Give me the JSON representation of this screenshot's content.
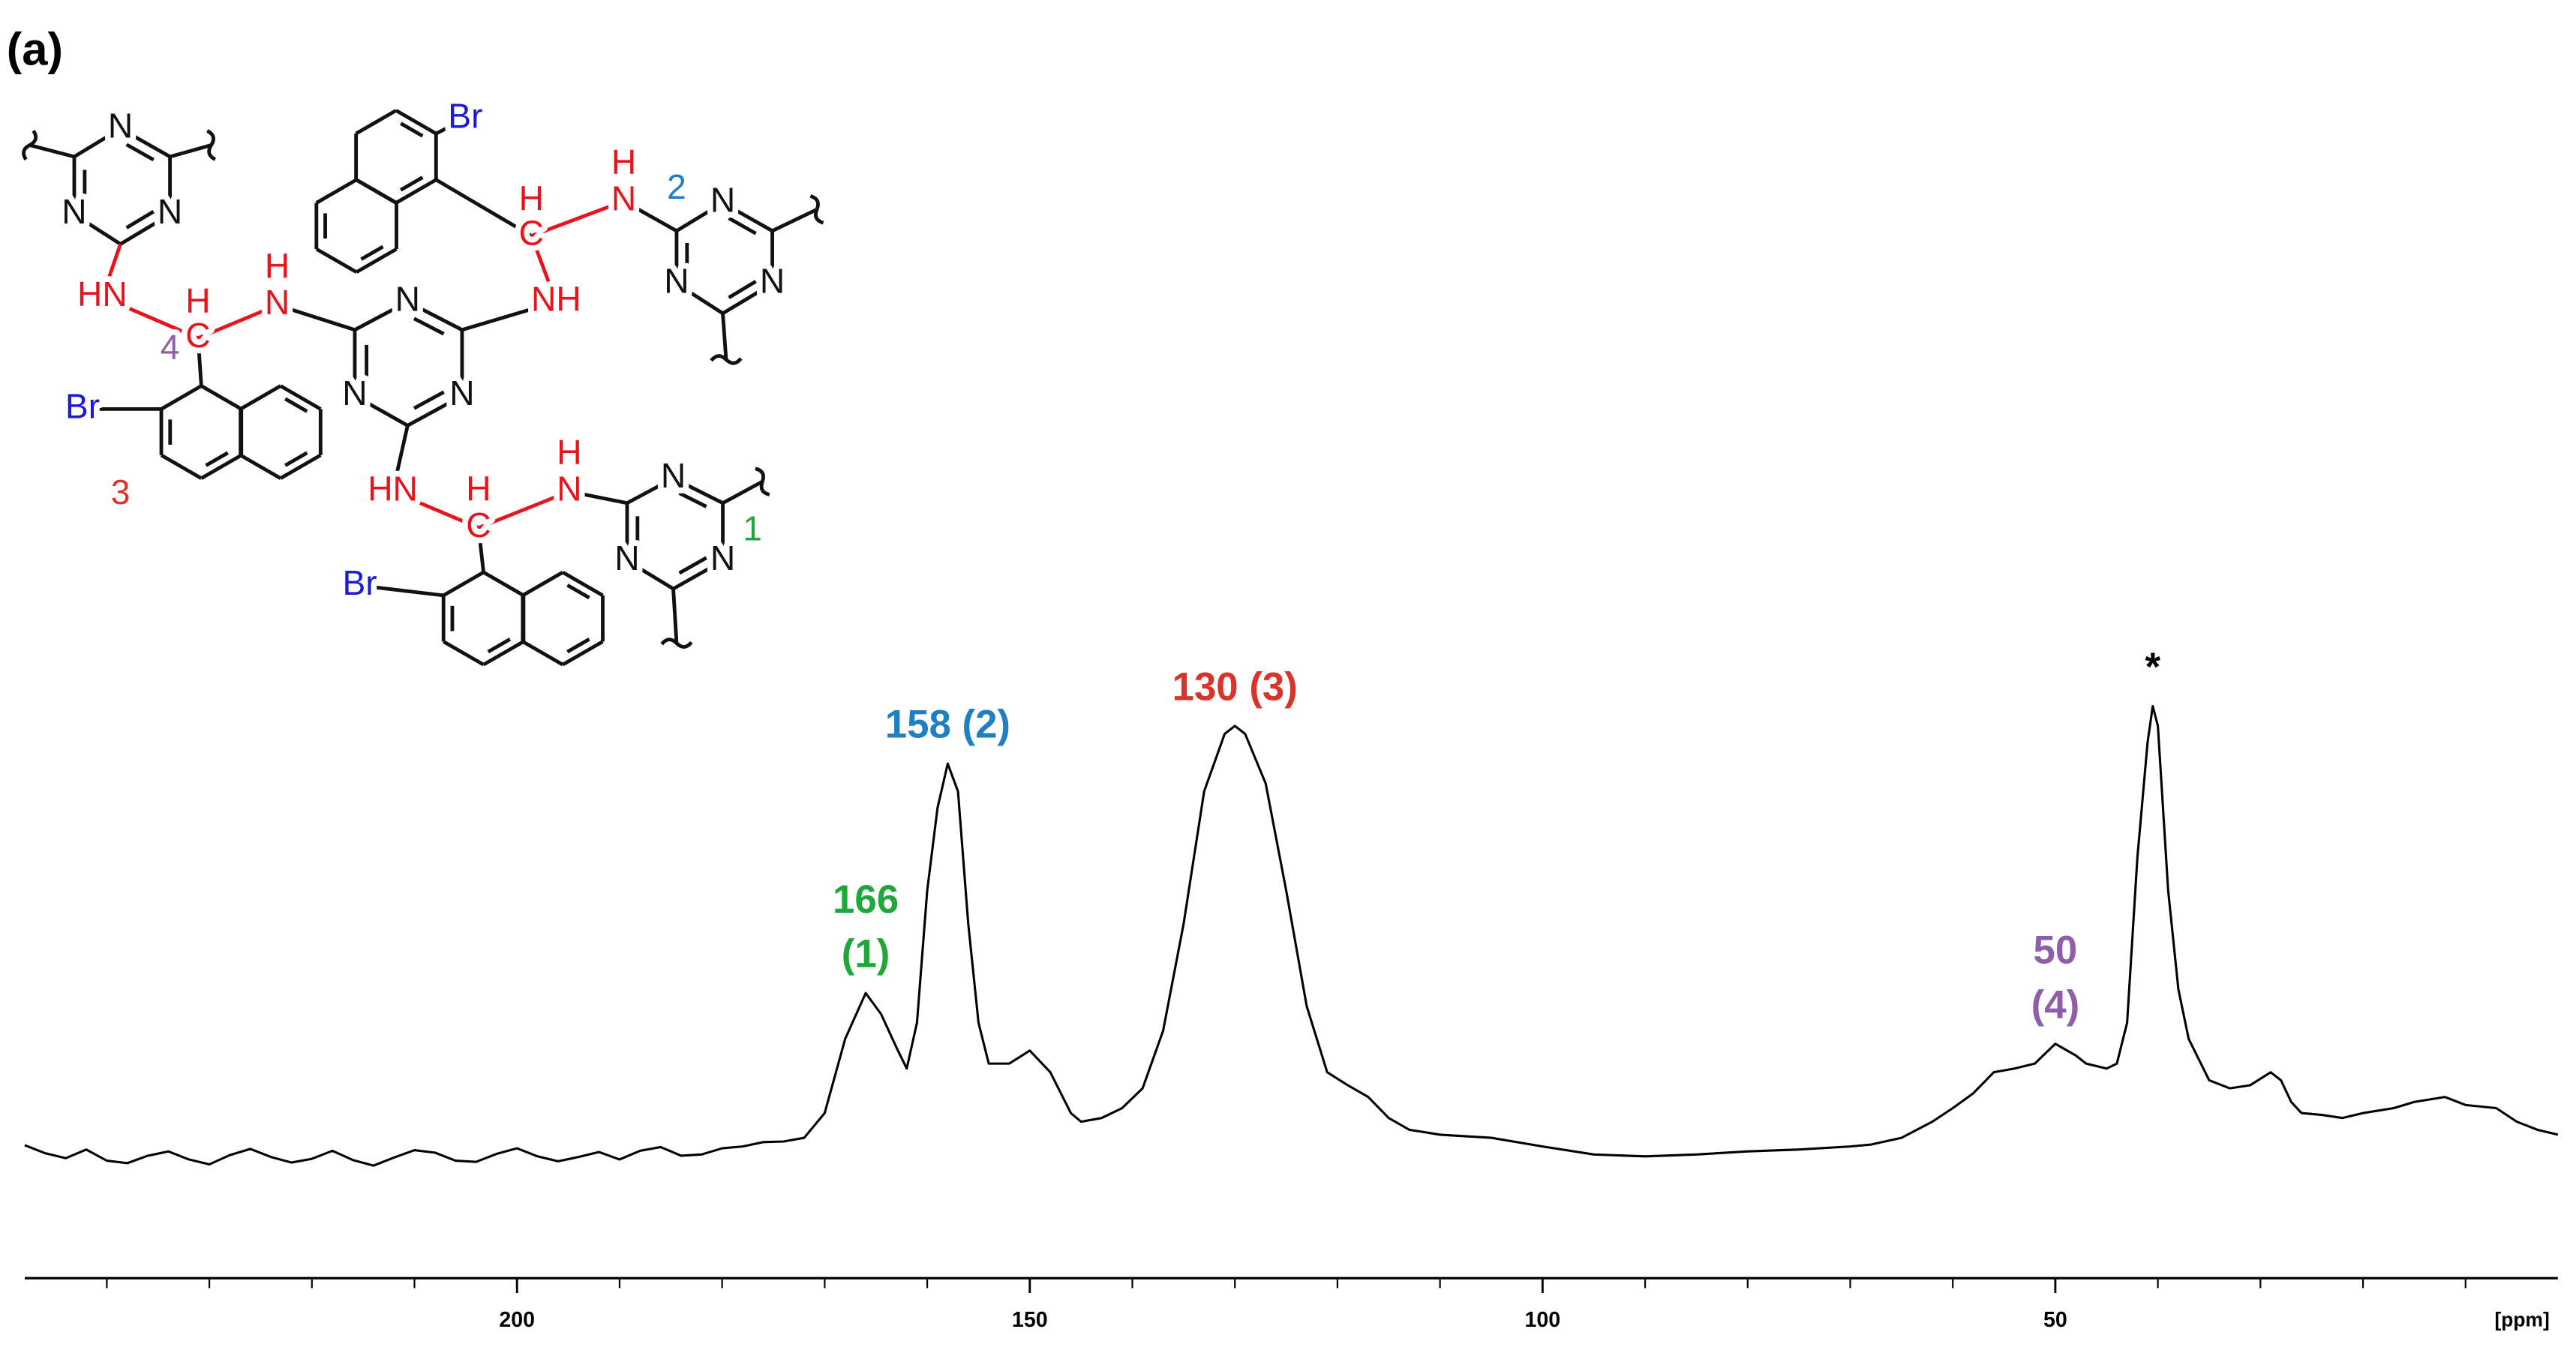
{
  "panel_label": "(a)",
  "structure": {
    "labels": [
      "N",
      "N",
      "N",
      "HN",
      "H",
      "C",
      "4",
      "H",
      "N",
      "N",
      "N",
      "N",
      "NH",
      "H",
      "C",
      "H",
      "N",
      "2",
      "N",
      "N",
      "N",
      "Br",
      "Br",
      "3",
      "HN",
      "H",
      "C",
      "H",
      "N",
      "N",
      "N",
      "N",
      "1",
      "Br"
    ]
  },
  "chart_data": {
    "type": "line",
    "x_label": "[ppm]",
    "xlim": [
      248,
      1
    ],
    "ylim": [
      0,
      100
    ],
    "xticks": [
      200,
      150,
      100,
      50
    ],
    "xminorticks": [
      240,
      230,
      220,
      210,
      190,
      180,
      170,
      160,
      140,
      130,
      120,
      110,
      90,
      80,
      70,
      60,
      40,
      30,
      20,
      10
    ],
    "color": "#000000",
    "x": [
      248,
      246,
      244,
      242,
      240,
      238,
      236,
      234,
      232,
      230,
      228,
      226,
      224,
      222,
      220,
      218,
      216,
      214,
      212,
      210,
      208,
      206,
      204,
      202,
      200,
      198,
      196,
      194,
      192,
      190,
      188,
      186,
      184,
      182,
      180,
      178,
      176,
      174,
      172,
      170,
      168,
      166,
      164.5,
      163,
      162,
      161,
      160,
      159,
      158,
      157,
      156,
      155,
      154,
      152,
      150,
      148,
      146,
      145,
      143,
      141,
      139,
      137,
      135,
      133,
      131,
      130,
      129,
      127,
      125,
      123,
      121,
      119,
      117,
      115,
      113,
      110,
      105,
      100,
      95,
      90,
      85,
      80,
      75,
      70,
      68,
      65,
      62,
      60,
      58,
      56,
      54,
      52,
      50,
      48,
      47,
      45,
      44,
      43,
      42,
      41,
      40.5,
      40,
      39,
      38,
      37,
      35,
      33,
      31,
      29,
      28,
      27,
      26,
      24,
      22,
      20,
      17,
      15,
      12,
      10,
      7,
      5,
      3,
      1
    ],
    "values": [
      21.5,
      20.2,
      19.4,
      20.8,
      19.0,
      18.6,
      19.8,
      20.5,
      19.2,
      18.4,
      19.9,
      20.9,
      19.6,
      18.7,
      19.3,
      20.6,
      19.1,
      18.2,
      19.5,
      20.7,
      20.3,
      19.0,
      18.8,
      20.1,
      21.0,
      19.7,
      18.9,
      19.6,
      20.4,
      19.2,
      20.6,
      21.2,
      19.8,
      20.0,
      21.0,
      21.3,
      22.0,
      22.1,
      22.7,
      26.7,
      38.7,
      46.1,
      42.7,
      37.3,
      33.9,
      41.3,
      62.7,
      76.0,
      83.2,
      78.7,
      57.3,
      41.3,
      34.7,
      34.7,
      36.8,
      33.3,
      26.7,
      25.3,
      25.9,
      27.5,
      30.7,
      40.0,
      57.3,
      78.7,
      88.0,
      89.3,
      88.0,
      80.0,
      62.7,
      44.0,
      33.3,
      31.2,
      29.3,
      25.9,
      24.0,
      23.2,
      22.7,
      21.3,
      20.0,
      19.7,
      20.0,
      20.5,
      20.8,
      21.3,
      21.6,
      22.7,
      25.3,
      27.5,
      29.9,
      33.3,
      33.9,
      34.7,
      37.9,
      36.0,
      34.7,
      33.9,
      34.7,
      41.3,
      68.0,
      86.7,
      92.5,
      89.3,
      62.7,
      46.7,
      38.7,
      32.0,
      30.7,
      31.2,
      33.3,
      32.0,
      28.5,
      26.7,
      26.4,
      25.9,
      26.7,
      27.5,
      28.5,
      29.3,
      28.0,
      27.5,
      25.3,
      24.0,
      23.2
    ],
    "annotations": [
      {
        "text": [
          "166",
          "(1)"
        ],
        "x": 166,
        "color": "#1fa83a"
      },
      {
        "text": [
          "158 (2)"
        ],
        "x": 158,
        "color": "#1f7fc3"
      },
      {
        "text": [
          "130 (3)"
        ],
        "x": 130,
        "color": "#d9342b"
      },
      {
        "text": [
          "50",
          "(4)"
        ],
        "x": 50,
        "color": "#8e5fa8"
      },
      {
        "text": [
          "*"
        ],
        "x": 40.5,
        "color": "#000000"
      }
    ]
  }
}
